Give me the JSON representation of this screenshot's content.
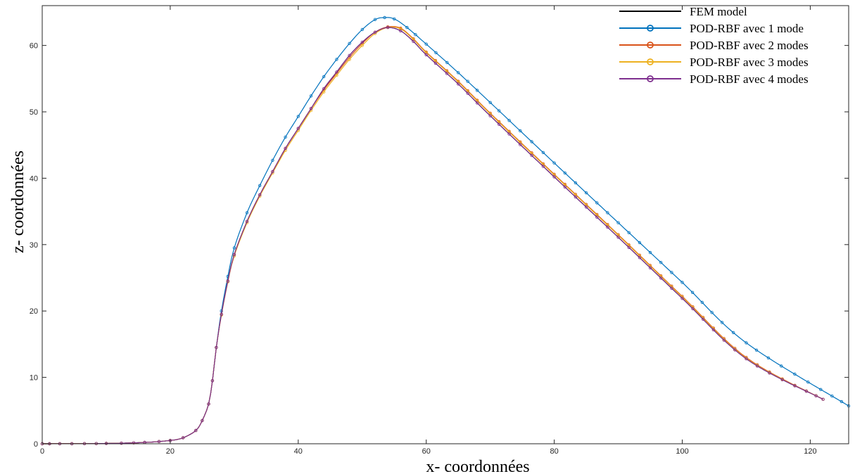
{
  "chart_data": {
    "type": "line",
    "title": "",
    "xlabel": "x- coordonnées",
    "ylabel": "z- coordonnées",
    "xlim": [
      0,
      126
    ],
    "ylim": [
      0,
      66
    ],
    "xticks": [
      0,
      20,
      40,
      60,
      80,
      100,
      120
    ],
    "yticks": [
      0,
      10,
      20,
      30,
      40,
      50,
      60
    ],
    "grid": false,
    "legend_position": "top-right",
    "series": [
      {
        "name": "FEM model",
        "color": "#000000",
        "markers": false,
        "points": [
          [
            0,
            0
          ],
          [
            10,
            0.05
          ],
          [
            16,
            0.2
          ],
          [
            20,
            0.5
          ],
          [
            22,
            0.9
          ],
          [
            24,
            2.0
          ],
          [
            25,
            3.5
          ],
          [
            26,
            6.0
          ],
          [
            26.6,
            9.5
          ],
          [
            27.2,
            14.5
          ],
          [
            28,
            19.5
          ],
          [
            29,
            24.5
          ],
          [
            30,
            28.5
          ],
          [
            32,
            33.5
          ],
          [
            34,
            37.5
          ],
          [
            36,
            41.0
          ],
          [
            38,
            44.5
          ],
          [
            40,
            47.5
          ],
          [
            42,
            50.5
          ],
          [
            44,
            53.5
          ],
          [
            46,
            56.0
          ],
          [
            48,
            58.5
          ],
          [
            50,
            60.5
          ],
          [
            52,
            62.0
          ],
          [
            54,
            62.7
          ],
          [
            56,
            62.2
          ],
          [
            58,
            60.6
          ],
          [
            60,
            58.6
          ],
          [
            65,
            54.2
          ],
          [
            70,
            49.4
          ],
          [
            80,
            40.2
          ],
          [
            90,
            31.1
          ],
          [
            100,
            21.9
          ],
          [
            110,
            12.8
          ],
          [
            122,
            6.7
          ]
        ]
      },
      {
        "name": "POD-RBF avec 1 mode",
        "color": "#0072BD",
        "markers": true,
        "points": [
          [
            0,
            0
          ],
          [
            10,
            0.05
          ],
          [
            16,
            0.2
          ],
          [
            20,
            0.5
          ],
          [
            22,
            0.9
          ],
          [
            24,
            2.0
          ],
          [
            25,
            3.5
          ],
          [
            26,
            6.0
          ],
          [
            26.6,
            9.5
          ],
          [
            27.2,
            14.5
          ],
          [
            28,
            20.0
          ],
          [
            29,
            25.2
          ],
          [
            30,
            29.5
          ],
          [
            32,
            34.8
          ],
          [
            34,
            38.9
          ],
          [
            36,
            42.7
          ],
          [
            38,
            46.2
          ],
          [
            40,
            49.3
          ],
          [
            42,
            52.4
          ],
          [
            44,
            55.3
          ],
          [
            46,
            57.9
          ],
          [
            48,
            60.3
          ],
          [
            50,
            62.4
          ],
          [
            52,
            63.9
          ],
          [
            53.5,
            64.2
          ],
          [
            55,
            64.0
          ],
          [
            57,
            62.7
          ],
          [
            60,
            60.2
          ],
          [
            65,
            55.9
          ],
          [
            70,
            51.4
          ],
          [
            80,
            42.3
          ],
          [
            90,
            33.3
          ],
          [
            100,
            24.3
          ],
          [
            110,
            15.2
          ],
          [
            126,
            5.7
          ]
        ]
      },
      {
        "name": "POD-RBF avec 2 modes",
        "color": "#D95319",
        "markers": true,
        "points": [
          [
            0,
            0
          ],
          [
            10,
            0.05
          ],
          [
            16,
            0.2
          ],
          [
            20,
            0.5
          ],
          [
            22,
            0.9
          ],
          [
            24,
            2.0
          ],
          [
            25,
            3.5
          ],
          [
            26,
            6.0
          ],
          [
            26.6,
            9.5
          ],
          [
            27.2,
            14.5
          ],
          [
            28,
            19.5
          ],
          [
            29,
            24.5
          ],
          [
            30,
            28.5
          ],
          [
            32,
            33.5
          ],
          [
            34,
            37.5
          ],
          [
            36,
            41.0
          ],
          [
            38,
            44.5
          ],
          [
            40,
            47.5
          ],
          [
            42,
            50.5
          ],
          [
            44,
            53.3
          ],
          [
            46,
            55.8
          ],
          [
            48,
            58.2
          ],
          [
            50,
            60.3
          ],
          [
            52,
            62.0
          ],
          [
            54,
            62.8
          ],
          [
            56,
            62.6
          ],
          [
            58,
            61.0
          ],
          [
            60,
            59.0
          ],
          [
            65,
            54.6
          ],
          [
            70,
            49.8
          ],
          [
            80,
            40.6
          ],
          [
            90,
            31.5
          ],
          [
            100,
            22.2
          ],
          [
            110,
            13.0
          ],
          [
            122,
            6.7
          ]
        ]
      },
      {
        "name": "POD-RBF avec 3 modes",
        "color": "#EDB120",
        "markers": true,
        "points": [
          [
            0,
            0
          ],
          [
            10,
            0.05
          ],
          [
            16,
            0.2
          ],
          [
            20,
            0.5
          ],
          [
            22,
            0.9
          ],
          [
            24,
            2.0
          ],
          [
            25,
            3.5
          ],
          [
            26,
            6.0
          ],
          [
            26.6,
            9.5
          ],
          [
            27.2,
            14.5
          ],
          [
            28,
            19.4
          ],
          [
            29,
            24.4
          ],
          [
            30,
            28.3
          ],
          [
            32,
            33.3
          ],
          [
            34,
            37.3
          ],
          [
            36,
            40.8
          ],
          [
            38,
            44.2
          ],
          [
            40,
            47.2
          ],
          [
            42,
            50.2
          ],
          [
            44,
            53.0
          ],
          [
            46,
            55.5
          ],
          [
            48,
            57.9
          ],
          [
            50,
            60.0
          ],
          [
            52,
            61.8
          ],
          [
            54,
            62.7
          ],
          [
            56,
            62.5
          ],
          [
            58,
            60.9
          ],
          [
            60,
            58.9
          ],
          [
            65,
            54.5
          ],
          [
            70,
            49.7
          ],
          [
            80,
            40.5
          ],
          [
            90,
            31.4
          ],
          [
            100,
            22.1
          ],
          [
            110,
            12.9
          ],
          [
            122,
            6.7
          ]
        ]
      },
      {
        "name": "POD-RBF avec 4 modes",
        "color": "#7E2F8E",
        "markers": true,
        "points": [
          [
            0,
            0
          ],
          [
            10,
            0.05
          ],
          [
            16,
            0.2
          ],
          [
            20,
            0.5
          ],
          [
            22,
            0.9
          ],
          [
            24,
            2.0
          ],
          [
            25,
            3.5
          ],
          [
            26,
            6.0
          ],
          [
            26.6,
            9.5
          ],
          [
            27.2,
            14.5
          ],
          [
            28,
            19.5
          ],
          [
            29,
            24.5
          ],
          [
            30,
            28.5
          ],
          [
            32,
            33.5
          ],
          [
            34,
            37.5
          ],
          [
            36,
            41.0
          ],
          [
            38,
            44.5
          ],
          [
            40,
            47.5
          ],
          [
            42,
            50.5
          ],
          [
            44,
            53.5
          ],
          [
            46,
            56.0
          ],
          [
            48,
            58.5
          ],
          [
            50,
            60.5
          ],
          [
            52,
            62.0
          ],
          [
            54,
            62.7
          ],
          [
            56,
            62.2
          ],
          [
            58,
            60.6
          ],
          [
            60,
            58.6
          ],
          [
            65,
            54.2
          ],
          [
            70,
            49.4
          ],
          [
            80,
            40.2
          ],
          [
            90,
            31.1
          ],
          [
            100,
            21.9
          ],
          [
            110,
            12.8
          ],
          [
            122,
            6.7
          ]
        ]
      }
    ]
  }
}
